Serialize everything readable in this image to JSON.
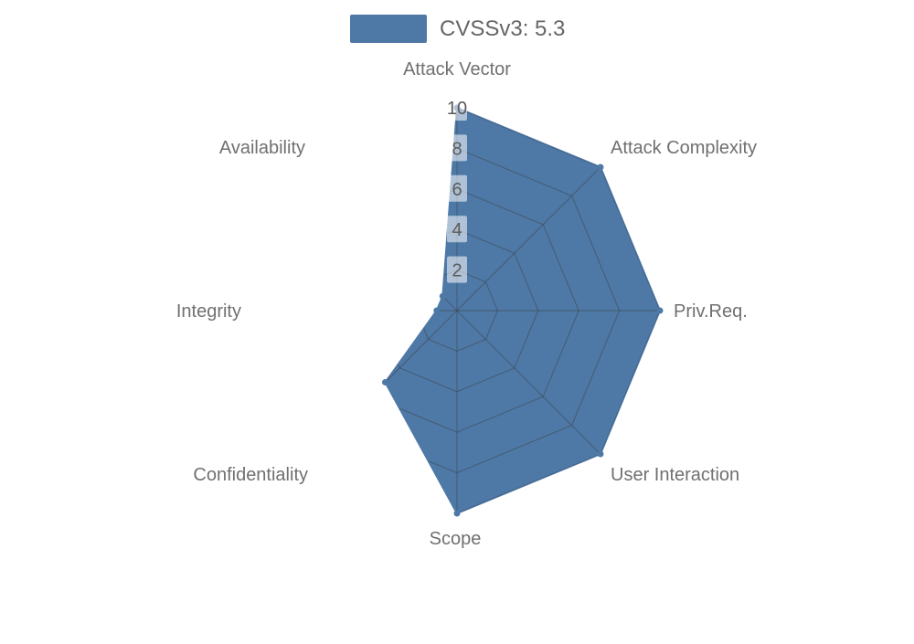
{
  "chart_data": {
    "type": "radar",
    "title": "",
    "legend": {
      "label": "CVSSv3: 5.3",
      "position": "top",
      "swatch_color": "#4e79a7"
    },
    "cvss_score": "5.3",
    "axes": [
      "Attack Vector",
      "Attack Complexity",
      "Priv.Req.",
      "User Interaction",
      "Scope",
      "Confidentiality",
      "Integrity",
      "Availability"
    ],
    "series": [
      {
        "name": "CVSSv3: 5.3",
        "values": [
          10,
          10,
          10,
          10,
          10,
          5,
          1,
          1
        ]
      }
    ],
    "scale": {
      "min": 0,
      "max": 10,
      "ticks": [
        "2",
        "4",
        "6",
        "8",
        "10"
      ]
    },
    "layout": {
      "grid": "spider-web, clipped to filled area",
      "start_axis": "top",
      "direction": "clockwise"
    },
    "colors": {
      "series_fill": "#4e79a7",
      "series_stroke": "#4e79a7",
      "grid_line": "rgba(60,60,60,0.42)",
      "axis_label": "#707070",
      "tick_label": "#5a5a5a",
      "tick_label_bg": "rgba(255,255,255,0.55)",
      "legend_text": "#666666",
      "background": "#ffffff"
    }
  }
}
